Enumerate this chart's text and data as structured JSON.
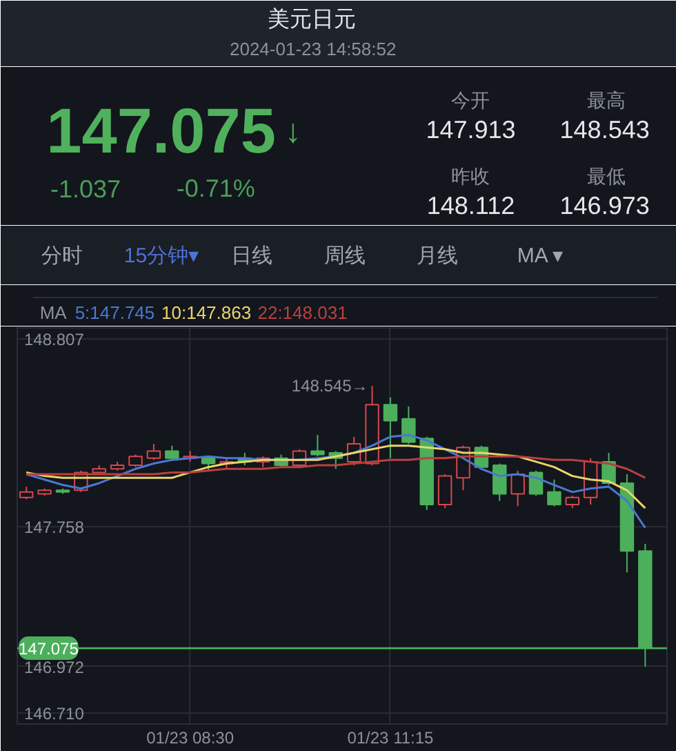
{
  "chart_data": {
    "type": "candlestick",
    "title": "美元日元",
    "subtitle": "2024-01-23 14:58:52",
    "categories": [
      null,
      null,
      null,
      null,
      null,
      null,
      null,
      null,
      null,
      "01/23 08:30",
      null,
      null,
      null,
      null,
      null,
      null,
      null,
      null,
      null,
      null,
      "01/23 11:15",
      null,
      null,
      null,
      null,
      null,
      null,
      null,
      null,
      null,
      null,
      null,
      null,
      null,
      null
    ],
    "ohlc": [
      [
        147.92,
        147.98,
        147.91,
        147.95
      ],
      [
        147.94,
        147.97,
        147.93,
        147.96
      ],
      [
        147.96,
        147.97,
        147.94,
        147.95
      ],
      [
        147.96,
        148.07,
        147.95,
        148.06
      ],
      [
        148.06,
        148.1,
        148.05,
        148.08
      ],
      [
        148.08,
        148.12,
        148.07,
        148.1
      ],
      [
        148.1,
        148.16,
        148.09,
        148.15
      ],
      [
        148.14,
        148.22,
        148.13,
        148.18
      ],
      [
        148.18,
        148.21,
        148.13,
        148.14
      ],
      [
        148.14,
        148.18,
        148.12,
        148.15
      ],
      [
        148.14,
        148.15,
        148.07,
        148.11
      ],
      [
        148.11,
        148.14,
        148.08,
        148.12
      ],
      [
        148.14,
        148.17,
        148.1,
        148.12
      ],
      [
        148.12,
        148.15,
        148.09,
        148.14
      ],
      [
        148.14,
        148.16,
        148.09,
        148.1
      ],
      [
        148.1,
        148.19,
        148.09,
        148.18
      ],
      [
        148.18,
        148.27,
        148.15,
        148.16
      ],
      [
        148.17,
        148.18,
        148.08,
        148.14
      ],
      [
        148.12,
        148.26,
        148.1,
        148.22
      ],
      [
        148.11,
        148.545,
        148.1,
        148.44
      ],
      [
        148.44,
        148.48,
        148.14,
        148.35
      ],
      [
        148.36,
        148.43,
        148.22,
        148.23
      ],
      [
        148.25,
        148.26,
        147.85,
        147.88
      ],
      [
        147.88,
        148.05,
        147.86,
        148.04
      ],
      [
        148.03,
        148.21,
        147.96,
        148.2
      ],
      [
        148.2,
        148.21,
        148.08,
        148.09
      ],
      [
        148.1,
        148.11,
        147.9,
        147.94
      ],
      [
        147.94,
        148.07,
        147.87,
        148.05
      ],
      [
        148.06,
        148.07,
        147.93,
        147.94
      ],
      [
        147.95,
        148.02,
        147.87,
        147.88
      ],
      [
        147.88,
        147.93,
        147.86,
        147.92
      ],
      [
        147.92,
        148.14,
        147.88,
        148.12
      ],
      [
        148.12,
        148.17,
        147.99,
        148.0
      ],
      [
        148.0,
        148.05,
        147.5,
        147.62
      ],
      [
        147.62,
        147.66,
        146.972,
        147.075
      ]
    ],
    "colors": [
      "#d9474c",
      "#d9474c",
      "#4caf5c",
      "#d9474c",
      "#d9474c",
      "#d9474c",
      "#d9474c",
      "#d9474c",
      "#4caf5c",
      "#d9474c",
      "#4caf5c",
      "#d9474c",
      "#4caf5c",
      "#d9474c",
      "#4caf5c",
      "#d9474c",
      "#4caf5c",
      "#4caf5c",
      "#d9474c",
      "#d9474c",
      "#4caf5c",
      "#4caf5c",
      "#4caf5c",
      "#d9474c",
      "#d9474c",
      "#4caf5c",
      "#4caf5c",
      "#d9474c",
      "#4caf5c",
      "#4caf5c",
      "#d9474c",
      "#d9474c",
      "#4caf5c",
      "#4caf5c",
      "#4caf5c"
    ],
    "series": [
      {
        "name": "5:147.745",
        "type": "line",
        "color": "#4a78d0",
        "values": [
          148.05,
          148.02,
          147.99,
          147.97,
          148.0,
          148.04,
          148.08,
          148.11,
          148.13,
          148.14,
          148.15,
          148.14,
          148.14,
          148.13,
          148.13,
          148.13,
          148.14,
          148.15,
          148.17,
          148.21,
          148.26,
          148.27,
          148.24,
          148.19,
          148.14,
          148.08,
          148.04,
          148.05,
          148.03,
          147.99,
          147.95,
          147.97,
          147.98,
          147.9,
          147.75
        ]
      },
      {
        "name": "10:147.863",
        "type": "line",
        "color": "#e9d56b",
        "values": [
          148.06,
          148.04,
          148.03,
          148.03,
          148.03,
          148.03,
          148.03,
          148.03,
          148.03,
          148.06,
          148.09,
          148.11,
          148.12,
          148.13,
          148.13,
          148.13,
          148.13,
          148.15,
          148.17,
          148.19,
          148.21,
          148.21,
          148.2,
          148.19,
          148.17,
          148.17,
          148.16,
          148.15,
          148.12,
          148.09,
          148.04,
          148.02,
          148.01,
          147.96,
          147.86
        ]
      },
      {
        "name": "22:148.031",
        "type": "line",
        "color": "#b9403f",
        "values": [
          148.05,
          148.05,
          148.05,
          148.05,
          148.05,
          148.05,
          148.05,
          148.05,
          148.06,
          148.06,
          148.07,
          148.08,
          148.08,
          148.08,
          148.09,
          148.09,
          148.1,
          148.1,
          148.11,
          148.12,
          148.13,
          148.13,
          148.14,
          148.14,
          148.15,
          148.15,
          148.15,
          148.15,
          148.14,
          148.13,
          148.13,
          148.12,
          148.11,
          148.08,
          148.03
        ]
      }
    ],
    "legend": "top left",
    "legend_title": "MA",
    "ylim": [
      146.65,
      148.87
    ],
    "yticks": [
      148.807,
      147.758,
      146.972,
      {
        "value": 146.71,
        "label": "146.710"
      }
    ],
    "grid": true,
    "ref_lines": [
      {
        "axis": "y",
        "value": 147.075,
        "label": "147.075",
        "color": "#4caf5c"
      }
    ],
    "annotations": [
      "147.075",
      "↓",
      "-1.037",
      "-0.71%",
      "今开",
      "147.913",
      "最高",
      "148.543",
      "昨收",
      "148.112",
      "最低",
      "146.973",
      "分时",
      "15分钟▾",
      "日线",
      "周线",
      "月线",
      "MA ▾",
      "148.545→"
    ]
  }
}
